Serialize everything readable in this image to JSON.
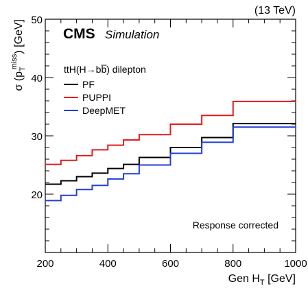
{
  "chart_data": {
    "type": "line",
    "step": true,
    "energy_label": "(13 TeV)",
    "experiment": "CMS",
    "status": "Simulation",
    "process_label": "ttH(H→bb̅) dilepton",
    "annotation": "Response corrected",
    "xlabel": {
      "prefix": "Gen H",
      "sub": "T",
      "suffix": " [GeV]"
    },
    "ylabel": {
      "prefix": "σ (p",
      "sub": "T",
      "sup": "miss",
      "suffix": ") [GeV]"
    },
    "xlim": [
      200,
      1000
    ],
    "ylim": [
      10,
      50
    ],
    "x_ticks": [
      200,
      400,
      600,
      800,
      1000
    ],
    "y_ticks": [
      20,
      30,
      40,
      50
    ],
    "bin_edges": [
      200,
      250,
      300,
      350,
      400,
      450,
      500,
      600,
      700,
      800,
      1000
    ],
    "legend_position": "top-left",
    "grid": false,
    "series": [
      {
        "name": "PF",
        "color": "#000000",
        "values": [
          21.7,
          22.3,
          23.0,
          23.6,
          24.4,
          25.1,
          26.3,
          28.0,
          29.7,
          32.1
        ]
      },
      {
        "name": "PUPPI",
        "color": "#e41a1c",
        "values": [
          25.1,
          25.8,
          26.6,
          27.6,
          28.4,
          29.3,
          30.2,
          32.0,
          33.5,
          35.9
        ]
      },
      {
        "name": "DeepMET",
        "color": "#1f3fd8",
        "values": [
          18.9,
          19.8,
          20.8,
          21.5,
          22.6,
          23.5,
          25.0,
          27.0,
          28.9,
          31.5
        ]
      }
    ]
  }
}
